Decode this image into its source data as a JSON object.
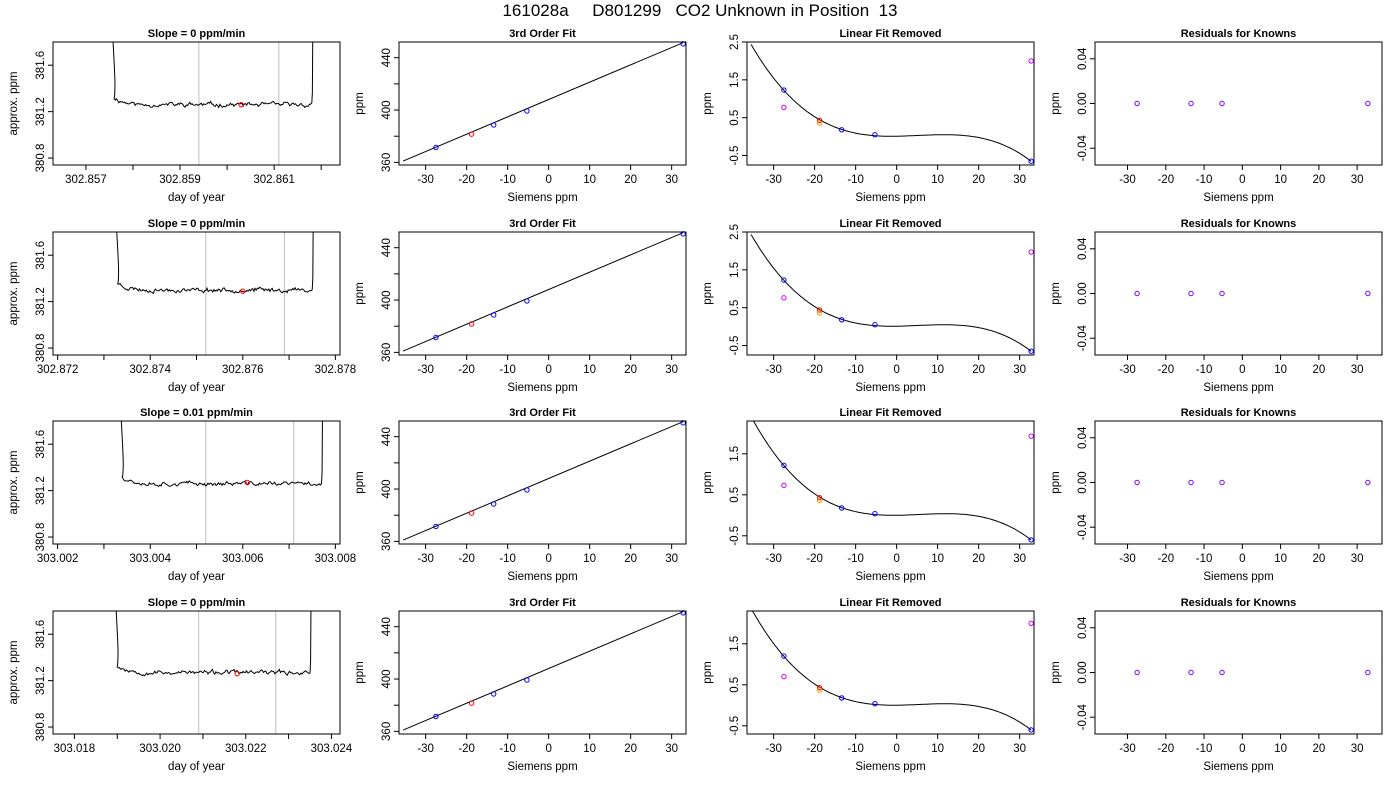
{
  "figure": {
    "title": "161028a     D801299   CO2 Unknown in Position  13"
  },
  "chart_data": [
    {
      "type": "line",
      "title": "Slope =  0  ppm/min",
      "xlabel": "day of year",
      "ylabel": "approx. ppm",
      "xlim": [
        302.8563,
        302.8624
      ],
      "ylim": [
        380.74,
        381.8
      ],
      "xticks": [
        302.857,
        302.859,
        302.861
      ],
      "xtick_labels": [
        "302.857",
        "302.859",
        "302.861"
      ],
      "xminor_ticks": [
        302.858,
        302.86,
        302.862
      ],
      "yticks": [
        380.8,
        381.2,
        381.6
      ],
      "ytick_labels": [
        "380.8",
        "381.2",
        "381.6"
      ],
      "vlines": [
        302.8594,
        302.8611
      ],
      "trace": {
        "start": 302.8576,
        "end": 302.8618,
        "level": 381.26,
        "noise": 0.02,
        "seed": 11
      },
      "marker": {
        "x": 302.8603,
        "y": 381.26,
        "color": "#ff0000"
      }
    },
    {
      "type": "scatter",
      "title": "3rd Order Fit",
      "xlabel": "Siemens ppm",
      "ylabel": "ppm",
      "xlim": [
        -36.5,
        33.5
      ],
      "ylim": [
        358,
        452
      ],
      "xticks": [
        -30,
        -20,
        -10,
        0,
        10,
        20,
        30
      ],
      "xtick_labels": [
        "-30",
        "-20",
        "-10",
        "0",
        "10",
        "20",
        "30"
      ],
      "yticks": [
        360,
        400,
        440
      ],
      "ytick_labels": [
        "360",
        "400",
        "440"
      ],
      "yminor_ticks": [
        380,
        420
      ],
      "fit_line": [
        [
          -35.5,
          361
        ],
        [
          32.8,
          451.5
        ]
      ],
      "points": [
        {
          "x": -27.5,
          "y": 371.4,
          "color": "#0000ff"
        },
        {
          "x": -18.8,
          "y": 381.6,
          "color": "#ff0000"
        },
        {
          "x": -13.4,
          "y": 388.6,
          "color": "#0000ff"
        },
        {
          "x": -5.3,
          "y": 399.3,
          "color": "#0000ff"
        },
        {
          "x": 32.8,
          "y": 450.6,
          "color": "#0000ff"
        }
      ]
    },
    {
      "type": "scatter",
      "title": "Linear Fit Removed",
      "xlabel": "Siemens ppm",
      "ylabel": "ppm",
      "xlim": [
        -36.5,
        33.5
      ],
      "ylim": [
        -0.75,
        2.5
      ],
      "xticks": [
        -30,
        -20,
        -10,
        0,
        10,
        20,
        30
      ],
      "xtick_labels": [
        "-30",
        "-20",
        "-10",
        "0",
        "10",
        "20",
        "30"
      ],
      "yticks": [
        -0.5,
        0.5,
        1.5,
        2.5
      ],
      "ytick_labels": [
        "-0.5",
        "0.5",
        "1.5",
        "2.5"
      ],
      "curve": {
        "x": [
          -27.5,
          -18.8,
          -13.4,
          -5.3,
          12.0,
          32.8
        ],
        "y": [
          1.23,
          0.43,
          0.18,
          0.05,
          0.04,
          -0.65
        ]
      },
      "points": [
        {
          "x": -27.5,
          "y": 1.23,
          "color": "#0000ff"
        },
        {
          "x": -27.5,
          "y": 0.77,
          "color": "#cc00ff"
        },
        {
          "x": -18.8,
          "y": 0.43,
          "color": "#ff0000"
        },
        {
          "x": -18.8,
          "y": 0.36,
          "color": "#ff9900"
        },
        {
          "x": -13.4,
          "y": 0.18,
          "color": "#0000ff"
        },
        {
          "x": -5.3,
          "y": 0.05,
          "color": "#0000ff"
        },
        {
          "x": 32.8,
          "y": -0.65,
          "color": "#0000ff"
        },
        {
          "x": 32.8,
          "y": 2.0,
          "color": "#cc00ff"
        }
      ]
    },
    {
      "type": "scatter",
      "title": "Residuals for Knowns",
      "xlabel": "Siemens ppm",
      "ylabel": "ppm",
      "xlim": [
        -38.5,
        36.5
      ],
      "ylim": [
        -0.055,
        0.055
      ],
      "xticks": [
        -30,
        -20,
        -10,
        0,
        10,
        20,
        30
      ],
      "xtick_labels": [
        "-30",
        "-20",
        "-10",
        "0",
        "10",
        "20",
        "30"
      ],
      "yticks": [
        -0.04,
        0.0,
        0.04
      ],
      "ytick_labels": [
        "-0.04",
        "0.00",
        "0.04"
      ],
      "points": [
        {
          "x": -27.5,
          "y": 0,
          "color": "#7700ff"
        },
        {
          "x": -13.4,
          "y": 0,
          "color": "#7700ff"
        },
        {
          "x": -5.3,
          "y": 0,
          "color": "#7700ff"
        },
        {
          "x": 32.8,
          "y": 0,
          "color": "#7700ff"
        }
      ]
    },
    {
      "type": "line",
      "title": "Slope =  0  ppm/min",
      "xlabel": "day of year",
      "ylabel": "approx. ppm",
      "xlim": [
        302.8719,
        302.8781
      ],
      "ylim": [
        380.74,
        381.8
      ],
      "xticks": [
        302.872,
        302.874,
        302.876,
        302.878
      ],
      "xtick_labels": [
        "302.872",
        "302.874",
        "302.876",
        "302.878"
      ],
      "xminor_ticks": [
        302.873,
        302.875,
        302.877
      ],
      "yticks": [
        380.8,
        381.2,
        381.6
      ],
      "ytick_labels": [
        "380.8",
        "381.2",
        "381.6"
      ],
      "vlines": [
        302.8752,
        302.8769
      ],
      "trace": {
        "start": 302.8733,
        "end": 302.8775,
        "level": 381.3,
        "noise": 0.02,
        "seed": 23
      },
      "marker": {
        "x": 302.876,
        "y": 381.29,
        "color": "#ff0000"
      }
    },
    {
      "type": "scatter",
      "title": "3rd Order Fit",
      "xlabel": "Siemens ppm",
      "ylabel": "ppm",
      "xlim": [
        -36.5,
        33.5
      ],
      "ylim": [
        358,
        452
      ],
      "xticks": [
        -30,
        -20,
        -10,
        0,
        10,
        20,
        30
      ],
      "xtick_labels": [
        "-30",
        "-20",
        "-10",
        "0",
        "10",
        "20",
        "30"
      ],
      "yticks": [
        360,
        400,
        440
      ],
      "ytick_labels": [
        "360",
        "400",
        "440"
      ],
      "yminor_ticks": [
        380,
        420
      ],
      "fit_line": [
        [
          -35.5,
          361
        ],
        [
          32.8,
          451.5
        ]
      ],
      "points": [
        {
          "x": -27.5,
          "y": 371.4,
          "color": "#0000ff"
        },
        {
          "x": -18.8,
          "y": 381.7,
          "color": "#ff0000"
        },
        {
          "x": -13.4,
          "y": 388.6,
          "color": "#0000ff"
        },
        {
          "x": -5.3,
          "y": 399.3,
          "color": "#0000ff"
        },
        {
          "x": 32.8,
          "y": 450.6,
          "color": "#0000ff"
        }
      ]
    },
    {
      "type": "scatter",
      "title": "Linear Fit Removed",
      "xlabel": "Siemens ppm",
      "ylabel": "ppm",
      "xlim": [
        -36.5,
        33.5
      ],
      "ylim": [
        -0.75,
        2.5
      ],
      "xticks": [
        -30,
        -20,
        -10,
        0,
        10,
        20,
        30
      ],
      "xtick_labels": [
        "-30",
        "-20",
        "-10",
        "0",
        "10",
        "20",
        "30"
      ],
      "yticks": [
        -0.5,
        0.5,
        1.5,
        2.5
      ],
      "ytick_labels": [
        "-0.5",
        "0.5",
        "1.5",
        "2.5"
      ],
      "curve": {
        "x": [
          -27.5,
          -18.8,
          -13.4,
          -5.3,
          12.0,
          32.8
        ],
        "y": [
          1.23,
          0.44,
          0.18,
          0.05,
          0.04,
          -0.65
        ]
      },
      "points": [
        {
          "x": -27.5,
          "y": 1.23,
          "color": "#0000ff"
        },
        {
          "x": -27.5,
          "y": 0.76,
          "color": "#cc00ff"
        },
        {
          "x": -18.8,
          "y": 0.44,
          "color": "#ff0000"
        },
        {
          "x": -18.8,
          "y": 0.36,
          "color": "#ff9900"
        },
        {
          "x": -13.4,
          "y": 0.18,
          "color": "#0000ff"
        },
        {
          "x": -5.3,
          "y": 0.05,
          "color": "#0000ff"
        },
        {
          "x": 32.8,
          "y": -0.65,
          "color": "#0000ff"
        },
        {
          "x": 32.8,
          "y": 1.97,
          "color": "#cc00ff"
        }
      ]
    },
    {
      "type": "scatter",
      "title": "Residuals for Knowns",
      "xlabel": "Siemens ppm",
      "ylabel": "ppm",
      "xlim": [
        -38.5,
        36.5
      ],
      "ylim": [
        -0.055,
        0.055
      ],
      "xticks": [
        -30,
        -20,
        -10,
        0,
        10,
        20,
        30
      ],
      "xtick_labels": [
        "-30",
        "-20",
        "-10",
        "0",
        "10",
        "20",
        "30"
      ],
      "yticks": [
        -0.04,
        0.0,
        0.04
      ],
      "ytick_labels": [
        "-0.04",
        "0.00",
        "0.04"
      ],
      "points": [
        {
          "x": -27.5,
          "y": 0,
          "color": "#7700ff"
        },
        {
          "x": -13.4,
          "y": 0,
          "color": "#7700ff"
        },
        {
          "x": -5.3,
          "y": 0,
          "color": "#7700ff"
        },
        {
          "x": 32.8,
          "y": 0,
          "color": "#7700ff"
        }
      ]
    },
    {
      "type": "line",
      "title": "Slope =  0.01  ppm/min",
      "xlabel": "day of year",
      "ylabel": "approx. ppm",
      "xlim": [
        303.0019,
        303.0081
      ],
      "ylim": [
        380.74,
        381.8
      ],
      "xticks": [
        303.002,
        303.004,
        303.006,
        303.008
      ],
      "xtick_labels": [
        "303.002",
        "303.004",
        "303.006",
        "303.008"
      ],
      "xminor_ticks": [
        303.003,
        303.005,
        303.007
      ],
      "yticks": [
        380.8,
        381.2,
        381.6
      ],
      "ytick_labels": [
        "380.8",
        "381.2",
        "381.6"
      ],
      "vlines": [
        303.0052,
        303.0071
      ],
      "trace": {
        "start": 303.0034,
        "end": 303.0077,
        "level": 381.26,
        "noise": 0.02,
        "seed": 37
      },
      "marker": {
        "x": 303.0061,
        "y": 381.27,
        "color": "#ff0000"
      }
    },
    {
      "type": "scatter",
      "title": "3rd Order Fit",
      "xlabel": "Siemens ppm",
      "ylabel": "ppm",
      "xlim": [
        -36.5,
        33.5
      ],
      "ylim": [
        358,
        452
      ],
      "xticks": [
        -30,
        -20,
        -10,
        0,
        10,
        20,
        30
      ],
      "xtick_labels": [
        "-30",
        "-20",
        "-10",
        "0",
        "10",
        "20",
        "30"
      ],
      "yticks": [
        360,
        400,
        440
      ],
      "ytick_labels": [
        "360",
        "400",
        "440"
      ],
      "yminor_ticks": [
        380,
        420
      ],
      "fit_line": [
        [
          -35.5,
          361
        ],
        [
          32.8,
          451.5
        ]
      ],
      "points": [
        {
          "x": -27.5,
          "y": 371.4,
          "color": "#0000ff"
        },
        {
          "x": -18.8,
          "y": 381.6,
          "color": "#ff0000"
        },
        {
          "x": -13.4,
          "y": 388.6,
          "color": "#0000ff"
        },
        {
          "x": -5.3,
          "y": 399.3,
          "color": "#0000ff"
        },
        {
          "x": 32.8,
          "y": 450.6,
          "color": "#0000ff"
        }
      ]
    },
    {
      "type": "scatter",
      "title": "Linear Fit Removed",
      "xlabel": "Siemens ppm",
      "ylabel": "ppm",
      "xlim": [
        -36.5,
        33.5
      ],
      "ylim": [
        -0.7,
        2.3
      ],
      "xticks": [
        -30,
        -20,
        -10,
        0,
        10,
        20,
        30
      ],
      "xtick_labels": [
        "-30",
        "-20",
        "-10",
        "0",
        "10",
        "20",
        "30"
      ],
      "yticks": [
        -0.5,
        0.5,
        1.5
      ],
      "ytick_labels": [
        "-0.5",
        "0.5",
        "1.5"
      ],
      "curve": {
        "x": [
          -27.5,
          -18.8,
          -13.4,
          -5.3,
          12.0,
          32.8
        ],
        "y": [
          1.22,
          0.43,
          0.18,
          0.04,
          0.03,
          -0.6
        ]
      },
      "points": [
        {
          "x": -27.5,
          "y": 1.22,
          "color": "#0000ff"
        },
        {
          "x": -27.5,
          "y": 0.73,
          "color": "#cc00ff"
        },
        {
          "x": -18.8,
          "y": 0.43,
          "color": "#ff0000"
        },
        {
          "x": -18.8,
          "y": 0.36,
          "color": "#ff9900"
        },
        {
          "x": -13.4,
          "y": 0.18,
          "color": "#0000ff"
        },
        {
          "x": -5.3,
          "y": 0.04,
          "color": "#0000ff"
        },
        {
          "x": 32.8,
          "y": -0.6,
          "color": "#0000ff"
        },
        {
          "x": 32.8,
          "y": 1.93,
          "color": "#cc00ff"
        }
      ]
    },
    {
      "type": "scatter",
      "title": "Residuals for Knowns",
      "xlabel": "Siemens ppm",
      "ylabel": "ppm",
      "xlim": [
        -38.5,
        36.5
      ],
      "ylim": [
        -0.055,
        0.055
      ],
      "xticks": [
        -30,
        -20,
        -10,
        0,
        10,
        20,
        30
      ],
      "xtick_labels": [
        "-30",
        "-20",
        "-10",
        "0",
        "10",
        "20",
        "30"
      ],
      "yticks": [
        -0.04,
        0.0,
        0.04
      ],
      "ytick_labels": [
        "-0.04",
        "0.00",
        "0.04"
      ],
      "points": [
        {
          "x": -27.5,
          "y": 0,
          "color": "#7700ff"
        },
        {
          "x": -13.4,
          "y": 0,
          "color": "#7700ff"
        },
        {
          "x": -5.3,
          "y": 0,
          "color": "#7700ff"
        },
        {
          "x": 32.8,
          "y": 0,
          "color": "#7700ff"
        }
      ]
    },
    {
      "type": "line",
      "title": "Slope =  0  ppm/min",
      "xlabel": "day of year",
      "ylabel": "approx. ppm",
      "xlim": [
        303.0175,
        303.0242
      ],
      "ylim": [
        380.74,
        381.8
      ],
      "xticks": [
        303.018,
        303.02,
        303.022,
        303.024
      ],
      "xtick_labels": [
        "303.018",
        "303.020",
        "303.022",
        "303.024"
      ],
      "xminor_ticks": [
        303.019,
        303.021,
        303.023
      ],
      "yticks": [
        380.8,
        381.2,
        381.6
      ],
      "ytick_labels": [
        "380.8",
        "381.2",
        "381.6"
      ],
      "vlines": [
        303.0209,
        303.0227
      ],
      "trace": {
        "start": 303.019,
        "end": 303.0235,
        "level": 381.27,
        "noise": 0.02,
        "seed": 53
      },
      "marker": {
        "x": 303.0218,
        "y": 381.26,
        "color": "#ff0000"
      }
    },
    {
      "type": "scatter",
      "title": "3rd Order Fit",
      "xlabel": "Siemens ppm",
      "ylabel": "ppm",
      "xlim": [
        -36.5,
        33.5
      ],
      "ylim": [
        358,
        452
      ],
      "xticks": [
        -30,
        -20,
        -10,
        0,
        10,
        20,
        30
      ],
      "xtick_labels": [
        "-30",
        "-20",
        "-10",
        "0",
        "10",
        "20",
        "30"
      ],
      "yticks": [
        360,
        400,
        440
      ],
      "ytick_labels": [
        "360",
        "400",
        "440"
      ],
      "yminor_ticks": [
        380,
        420
      ],
      "fit_line": [
        [
          -35.5,
          361
        ],
        [
          32.8,
          451.5
        ]
      ],
      "points": [
        {
          "x": -27.5,
          "y": 371.4,
          "color": "#0000ff"
        },
        {
          "x": -18.8,
          "y": 381.6,
          "color": "#ff0000"
        },
        {
          "x": -13.4,
          "y": 388.6,
          "color": "#0000ff"
        },
        {
          "x": -5.3,
          "y": 399.3,
          "color": "#0000ff"
        },
        {
          "x": 32.8,
          "y": 450.6,
          "color": "#0000ff"
        }
      ]
    },
    {
      "type": "scatter",
      "title": "Linear Fit Removed",
      "xlabel": "Siemens ppm",
      "ylabel": "ppm",
      "xlim": [
        -36.5,
        33.5
      ],
      "ylim": [
        -0.7,
        2.3
      ],
      "xticks": [
        -30,
        -20,
        -10,
        0,
        10,
        20,
        30
      ],
      "xtick_labels": [
        "-30",
        "-20",
        "-10",
        "0",
        "10",
        "20",
        "30"
      ],
      "yticks": [
        -0.5,
        0.5,
        1.5
      ],
      "ytick_labels": [
        "-0.5",
        "0.5",
        "1.5"
      ],
      "curve": {
        "x": [
          -27.5,
          -18.8,
          -13.4,
          -5.3,
          12.0,
          32.8
        ],
        "y": [
          1.2,
          0.43,
          0.18,
          0.04,
          0.03,
          -0.6
        ]
      },
      "points": [
        {
          "x": -27.5,
          "y": 1.2,
          "color": "#0000ff"
        },
        {
          "x": -27.5,
          "y": 0.7,
          "color": "#cc00ff"
        },
        {
          "x": -18.8,
          "y": 0.43,
          "color": "#ff0000"
        },
        {
          "x": -18.8,
          "y": 0.37,
          "color": "#ff9900"
        },
        {
          "x": -13.4,
          "y": 0.18,
          "color": "#0000ff"
        },
        {
          "x": -5.3,
          "y": 0.04,
          "color": "#0000ff"
        },
        {
          "x": 32.8,
          "y": -0.6,
          "color": "#0000ff"
        },
        {
          "x": 32.8,
          "y": 2.0,
          "color": "#cc00ff"
        }
      ]
    },
    {
      "type": "scatter",
      "title": "Residuals for Knowns",
      "xlabel": "Siemens ppm",
      "ylabel": "ppm",
      "xlim": [
        -38.5,
        36.5
      ],
      "ylim": [
        -0.055,
        0.055
      ],
      "xticks": [
        -30,
        -20,
        -10,
        0,
        10,
        20,
        30
      ],
      "xtick_labels": [
        "-30",
        "-20",
        "-10",
        "0",
        "10",
        "20",
        "30"
      ],
      "yticks": [
        -0.04,
        0.0,
        0.04
      ],
      "ytick_labels": [
        "-0.04",
        "0.00",
        "0.04"
      ],
      "points": [
        {
          "x": -27.5,
          "y": 0,
          "color": "#7700ff"
        },
        {
          "x": -13.4,
          "y": 0,
          "color": "#7700ff"
        },
        {
          "x": -5.3,
          "y": 0,
          "color": "#7700ff"
        },
        {
          "x": 32.8,
          "y": 0,
          "color": "#7700ff"
        }
      ]
    }
  ]
}
